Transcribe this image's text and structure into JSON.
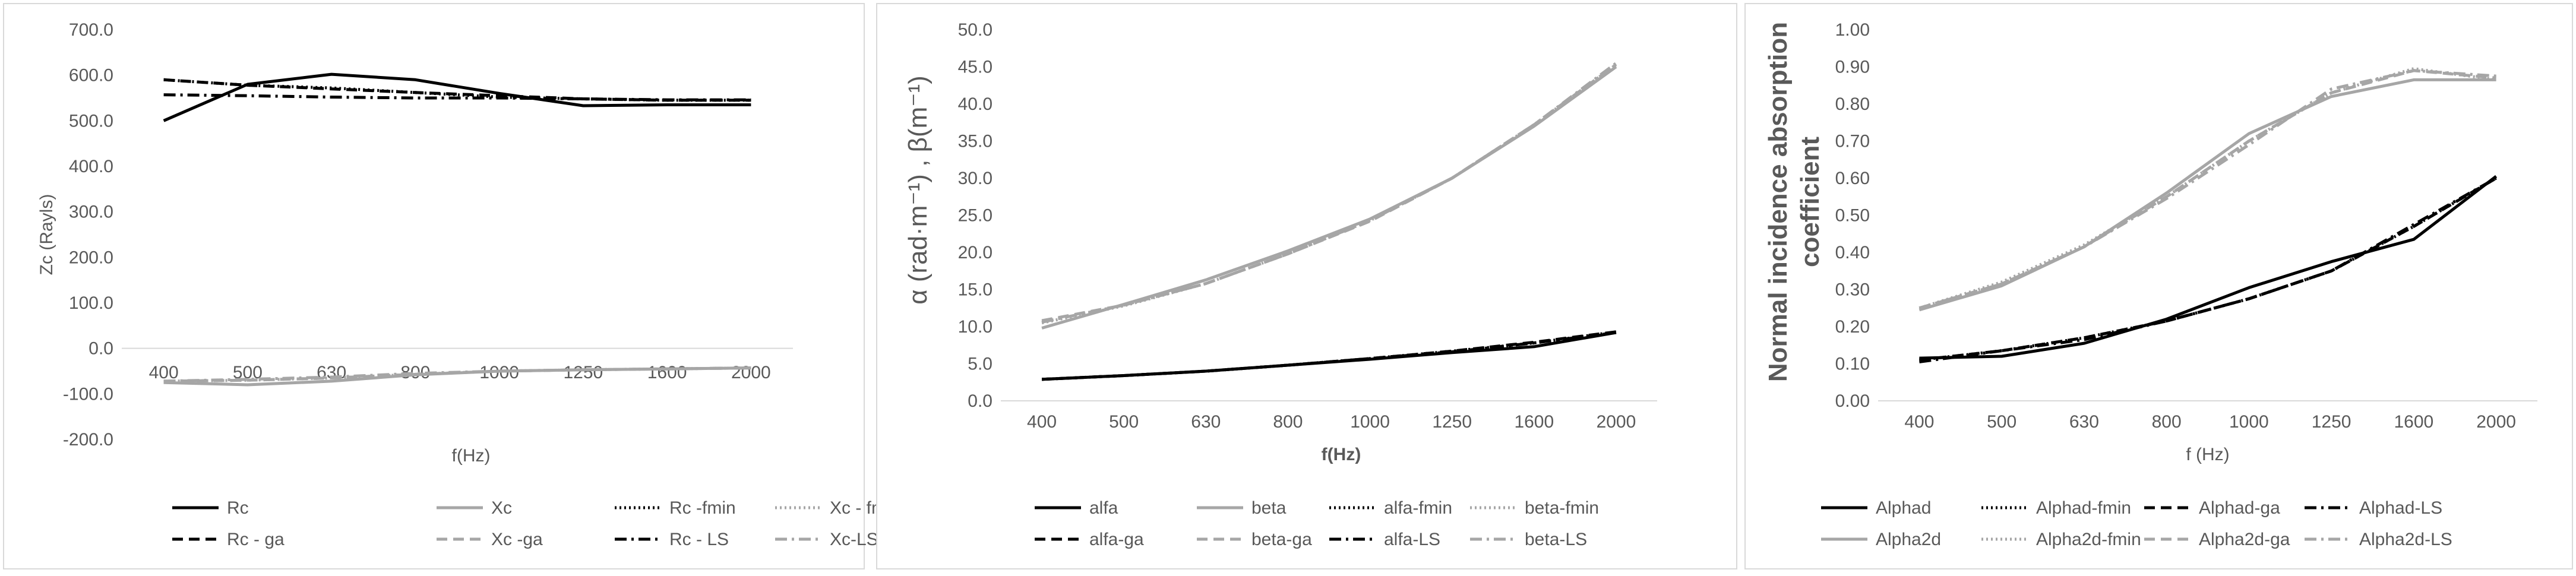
{
  "chart_data": [
    {
      "type": "line",
      "title": "",
      "xlabel": "f(Hz)",
      "ylabel": "Zc (Rayls)",
      "categories": [
        "400",
        "500",
        "630",
        "800",
        "1000",
        "1250",
        "1600",
        "2000"
      ],
      "ylim": [
        -200,
        700
      ],
      "yticks": [
        "-200.0",
        "-100.0",
        "0.0",
        "100.0",
        "200.0",
        "300.0",
        "400.0",
        "500.0",
        "600.0",
        "700.0"
      ],
      "grid": false,
      "legend_position": "bottom",
      "series": [
        {
          "name": "Rc",
          "color": "#000000",
          "dash": "solid",
          "values": [
            500,
            580,
            602,
            590,
            560,
            533,
            535,
            535
          ]
        },
        {
          "name": "Xc",
          "color": "#a6a6a6",
          "dash": "solid",
          "values": [
            -75,
            -80,
            -72,
            -58,
            -50,
            -47,
            -45,
            -43
          ]
        },
        {
          "name": "Rc -fmin",
          "color": "#000000",
          "dash": "dot",
          "values": [
            590,
            578,
            572,
            562,
            552,
            548,
            545,
            545
          ]
        },
        {
          "name": "Xc - fmin",
          "color": "#a6a6a6",
          "dash": "dot",
          "values": [
            -72,
            -70,
            -65,
            -57,
            -50,
            -47,
            -45,
            -43
          ]
        },
        {
          "name": "Rc - ga",
          "color": "#000000",
          "dash": "dash",
          "values": [
            590,
            578,
            570,
            562,
            555,
            548,
            545,
            545
          ]
        },
        {
          "name": "Xc -ga",
          "color": "#a6a6a6",
          "dash": "dash",
          "values": [
            -72,
            -70,
            -65,
            -57,
            -50,
            -47,
            -45,
            -43
          ]
        },
        {
          "name": "Rc - LS",
          "color": "#000000",
          "dash": "dashdot",
          "values": [
            557,
            555,
            552,
            550,
            550,
            548,
            546,
            546
          ]
        },
        {
          "name": "Xc-LS",
          "color": "#a6a6a6",
          "dash": "dashdot",
          "values": [
            -72,
            -68,
            -63,
            -55,
            -50,
            -47,
            -45,
            -43
          ]
        }
      ]
    },
    {
      "type": "line",
      "title": "",
      "xlabel": "f(Hz)",
      "ylabel": "α (rad·m⁻¹) , β(m⁻¹)",
      "categories": [
        "400",
        "500",
        "630",
        "800",
        "1000",
        "1250",
        "1600",
        "2000"
      ],
      "ylim": [
        0,
        50
      ],
      "yticks": [
        "0.0",
        "5.0",
        "10.0",
        "15.0",
        "20.0",
        "25.0",
        "30.0",
        "35.0",
        "40.0",
        "45.0",
        "50.0"
      ],
      "grid": false,
      "legend_position": "bottom",
      "series": [
        {
          "name": "alfa",
          "color": "#000000",
          "dash": "solid",
          "values": [
            2.9,
            3.4,
            4.0,
            4.8,
            5.6,
            6.5,
            7.3,
            9.2
          ]
        },
        {
          "name": "beta",
          "color": "#a6a6a6",
          "dash": "solid",
          "values": [
            9.8,
            13.0,
            16.3,
            20.2,
            24.5,
            30.0,
            37.0,
            45.0
          ]
        },
        {
          "name": "alfa-fmin",
          "color": "#000000",
          "dash": "dot",
          "values": [
            2.9,
            3.4,
            4.0,
            4.8,
            5.7,
            6.7,
            7.8,
            9.3
          ]
        },
        {
          "name": "beta-fmin",
          "color": "#a6a6a6",
          "dash": "dot",
          "values": [
            10.5,
            12.8,
            15.8,
            19.8,
            24.3,
            30.0,
            37.2,
            45.3
          ]
        },
        {
          "name": "alfa-ga",
          "color": "#000000",
          "dash": "dash",
          "values": [
            2.9,
            3.4,
            4.0,
            4.8,
            5.7,
            6.7,
            7.9,
            9.3
          ]
        },
        {
          "name": "beta-ga",
          "color": "#a6a6a6",
          "dash": "dash",
          "values": [
            10.8,
            12.9,
            15.8,
            19.8,
            24.2,
            30.0,
            37.2,
            45.3
          ]
        },
        {
          "name": "alfa-LS",
          "color": "#000000",
          "dash": "dashdot",
          "values": [
            2.9,
            3.4,
            4.0,
            4.8,
            5.7,
            6.6,
            7.8,
            9.2
          ]
        },
        {
          "name": "beta-LS",
          "color": "#a6a6a6",
          "dash": "dashdot",
          "values": [
            10.6,
            12.9,
            15.8,
            19.8,
            24.3,
            30.0,
            37.2,
            45.5
          ]
        }
      ]
    },
    {
      "type": "line",
      "title": "",
      "xlabel": "f (Hz)",
      "ylabel": "Normal incidence absorption coefficient",
      "ylabel_lines": [
        "Normal incidence absorption",
        "coefficient"
      ],
      "categories": [
        "400",
        "500",
        "630",
        "800",
        "1000",
        "1250",
        "1600",
        "2000"
      ],
      "ylim": [
        0,
        1
      ],
      "yticks": [
        "0.00",
        "0.10",
        "0.20",
        "0.30",
        "0.40",
        "0.50",
        "0.60",
        "0.70",
        "0.80",
        "0.90",
        "1.00"
      ],
      "grid": false,
      "legend_position": "bottom",
      "series": [
        {
          "name": "Alphad",
          "color": "#000000",
          "dash": "solid",
          "values": [
            0.115,
            0.12,
            0.155,
            0.22,
            0.305,
            0.375,
            0.435,
            0.605
          ]
        },
        {
          "name": "Alphad-fmin",
          "color": "#000000",
          "dash": "dot",
          "values": [
            0.11,
            0.135,
            0.17,
            0.215,
            0.275,
            0.35,
            0.47,
            0.6
          ]
        },
        {
          "name": "Alphad-ga",
          "color": "#000000",
          "dash": "dash",
          "values": [
            0.11,
            0.135,
            0.17,
            0.215,
            0.275,
            0.35,
            0.47,
            0.6
          ]
        },
        {
          "name": "Alphad-LS",
          "color": "#000000",
          "dash": "dashdot",
          "values": [
            0.105,
            0.135,
            0.165,
            0.215,
            0.275,
            0.35,
            0.475,
            0.6
          ]
        },
        {
          "name": "Alpha2d",
          "color": "#a6a6a6",
          "dash": "solid",
          "values": [
            0.245,
            0.31,
            0.415,
            0.56,
            0.72,
            0.82,
            0.865,
            0.865
          ]
        },
        {
          "name": "Alpha2d-fmin",
          "color": "#a6a6a6",
          "dash": "dot",
          "values": [
            0.25,
            0.32,
            0.42,
            0.55,
            0.7,
            0.83,
            0.895,
            0.865
          ]
        },
        {
          "name": "Alpha2d-ga",
          "color": "#a6a6a6",
          "dash": "dash",
          "values": [
            0.25,
            0.315,
            0.415,
            0.55,
            0.7,
            0.83,
            0.89,
            0.87
          ]
        },
        {
          "name": "Alpha2d-LS",
          "color": "#a6a6a6",
          "dash": "dashdot",
          "values": [
            0.25,
            0.315,
            0.415,
            0.545,
            0.69,
            0.84,
            0.89,
            0.875
          ]
        }
      ]
    }
  ]
}
